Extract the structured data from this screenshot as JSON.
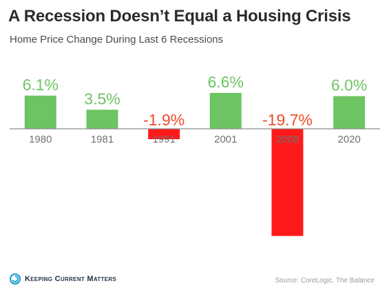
{
  "header": {
    "title": "A Recession Doesn’t Equal a Housing Crisis",
    "subtitle": "Home Price Change During Last 6 Recessions"
  },
  "footer": {
    "brand": "Keeping Current Matters",
    "source": "Source: CoreLogic, The Balance"
  },
  "icons": {
    "logo": "kcm-swirl-icon"
  },
  "colors": {
    "positive": "#6cc462",
    "negative": "#ff1a1a",
    "positive_label": "#6cc462",
    "negative_label": "#ee4a2a",
    "axis": "#8c8c8c",
    "tick": "#707070"
  },
  "chart_data": {
    "type": "bar",
    "categories": [
      "1980",
      "1981",
      "1991",
      "2001",
      "2008",
      "2020"
    ],
    "values": [
      6.1,
      3.5,
      -1.9,
      6.6,
      -19.7,
      6.0
    ],
    "value_labels": [
      "6.1%",
      "3.5%",
      "-1.9%",
      "6.6%",
      "-19.7%",
      "6.0%"
    ],
    "title": "A Recession Doesn’t Equal a Housing Crisis",
    "subtitle": "Home Price Change During Last 6 Recessions",
    "xlabel": "",
    "ylabel": "",
    "ylim": [
      -20.3,
      7.5
    ],
    "grid": false,
    "legend": "none"
  }
}
